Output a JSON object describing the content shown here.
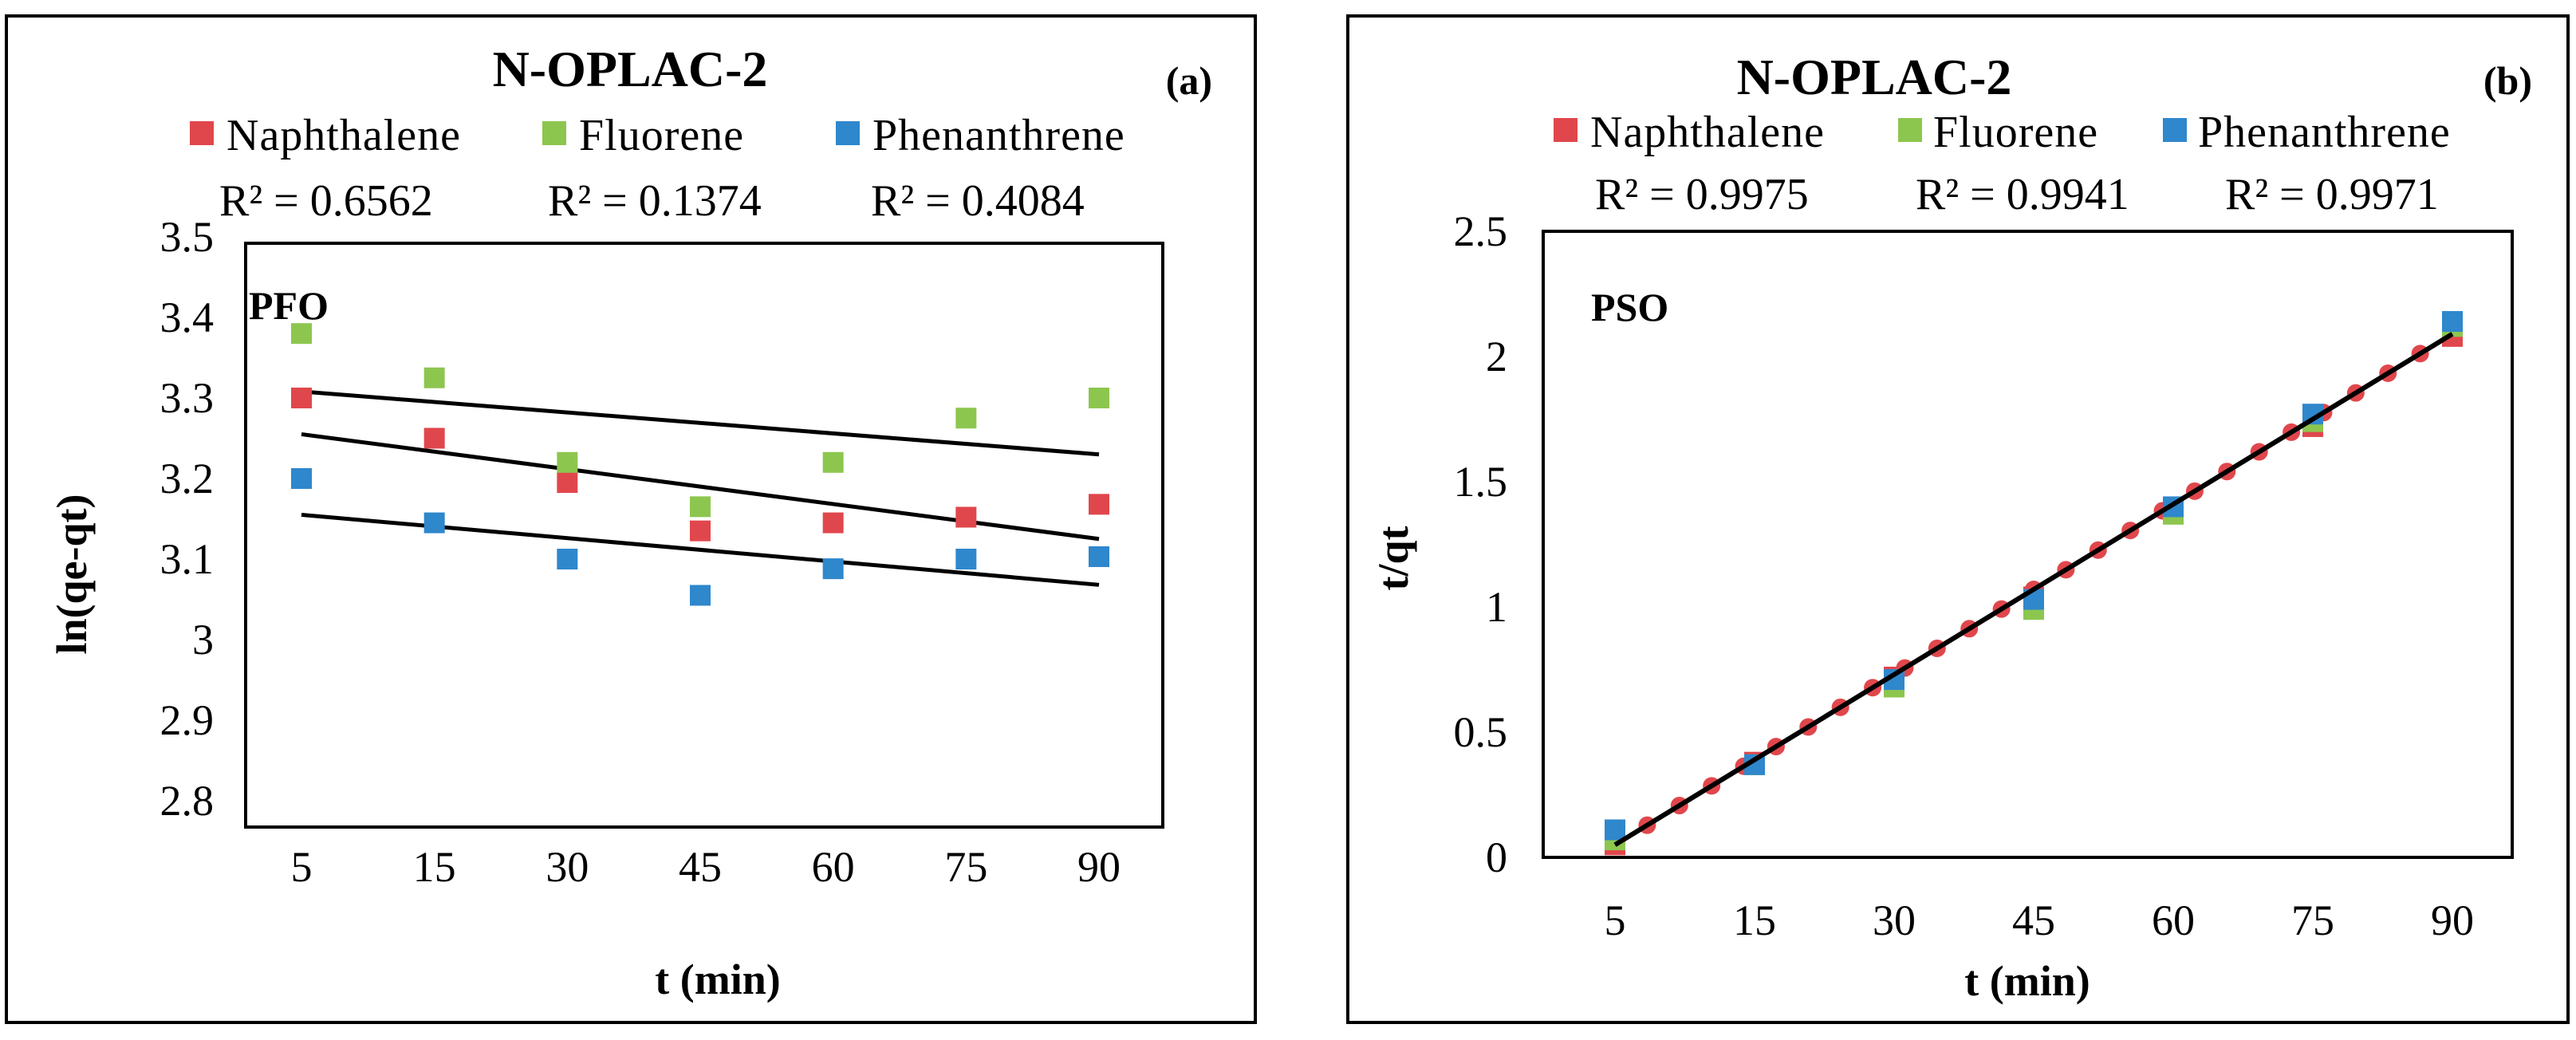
{
  "chart_data": [
    {
      "type": "scatter",
      "panel": "(a)",
      "title": "N-OPLAC-2",
      "model_label": "PFO",
      "xlabel": "t (min)",
      "ylabel": "ln(qe-qt)",
      "categories": [
        "5",
        "15",
        "30",
        "45",
        "60",
        "75",
        "90"
      ],
      "ylim": [
        2.8,
        3.5
      ],
      "y_ticks": [
        "3.5",
        "3.4",
        "3.3",
        "3.2",
        "3.1",
        "3",
        "2.9",
        "2.8"
      ],
      "grid": false,
      "legend_position": "top",
      "series": [
        {
          "name": "Naphthalene",
          "color": "#e0474c",
          "values": [
            3.3,
            3.25,
            3.195,
            3.135,
            3.145,
            3.152,
            3.168
          ],
          "trend": [
            3.255,
            3.125
          ],
          "r2": "R² = 0.6562"
        },
        {
          "name": "Fluorene",
          "color": "#8dc64f",
          "values": [
            3.38,
            3.325,
            3.22,
            3.165,
            3.22,
            3.275,
            3.3
          ],
          "trend": [
            3.308,
            3.23
          ],
          "r2": "R² = 0.1374"
        },
        {
          "name": "Phenanthrene",
          "color": "#2f87cc",
          "values": [
            3.2,
            3.145,
            3.1,
            3.055,
            3.088,
            3.1,
            3.103
          ],
          "trend": [
            3.155,
            3.068
          ],
          "r2": "R² = 0.4084"
        }
      ]
    },
    {
      "type": "scatter",
      "panel": "(b)",
      "title": "N-OPLAC-2",
      "model_label": "PSO",
      "xlabel": "t (min)",
      "ylabel": "t/qt",
      "categories": [
        "5",
        "15",
        "30",
        "45",
        "60",
        "75",
        "90"
      ],
      "ylim": [
        0,
        2.5
      ],
      "y_ticks": [
        "2.5",
        "2",
        "1.5",
        "1",
        "0.5",
        "0"
      ],
      "grid": false,
      "legend_position": "top",
      "trend": [
        0.05,
        2.09
      ],
      "series": [
        {
          "name": "Naphthalene",
          "color": "#e0474c",
          "values": [
            0.05,
            0.38,
            0.72,
            1.04,
            1.38,
            1.72,
            2.08
          ],
          "r2": "R² = 0.9975"
        },
        {
          "name": "Fluorene",
          "color": "#8dc64f",
          "values": [
            0.07,
            0.37,
            0.68,
            0.99,
            1.37,
            1.74,
            2.12
          ],
          "r2": "R² = 0.9941"
        },
        {
          "name": "Phenanthrene",
          "color": "#2f87cc",
          "values": [
            0.11,
            0.37,
            0.71,
            1.03,
            1.4,
            1.77,
            2.14
          ],
          "r2": "R² = 0.9971"
        }
      ]
    }
  ]
}
